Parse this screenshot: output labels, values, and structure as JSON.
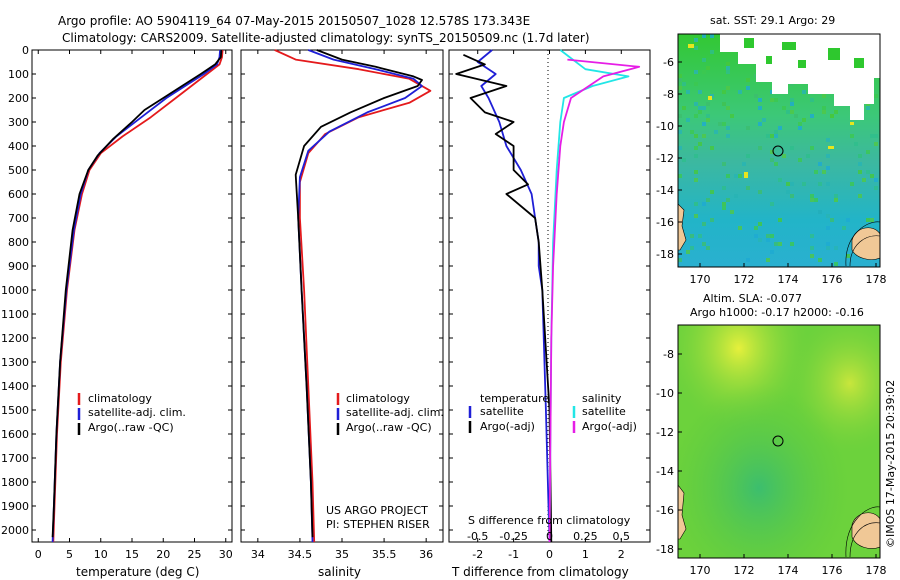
{
  "header": {
    "line1": "Argo profile: AO 5904119_64 07-May-2015 20150507_1028 12.578S 173.343E",
    "line2": "Climatology: CARS2009. Satellite-adjusted climatology: synTS_20150509.nc (1.7d later)"
  },
  "side_stamp": "©IMOS 17-May-2015 20:39:02",
  "colors": {
    "climatology": "#e41a1c",
    "satellite": "#1f1fd6",
    "argo": "#000000",
    "argo_salinity": "#e61ee6",
    "satellite_salinity": "#22e6e6"
  },
  "chart_data": [
    {
      "type": "line",
      "name": "temperature-profile",
      "xlabel": "temperature (deg C)",
      "ylim": [
        2050,
        0
      ],
      "xlim": [
        -1,
        31
      ],
      "xticks": [
        0,
        5,
        10,
        15,
        20,
        25,
        30
      ],
      "yticks": [
        0,
        100,
        200,
        300,
        400,
        500,
        600,
        700,
        800,
        900,
        1000,
        1100,
        1200,
        1300,
        1400,
        1500,
        1600,
        1700,
        1800,
        1900,
        2000
      ],
      "legend": [
        "climatology",
        "satellite-adj. clim.",
        "Argo(..raw -QC)"
      ],
      "series": [
        {
          "name": "climatology",
          "color": "#e41a1c",
          "points": [
            [
              29.5,
              0
            ],
            [
              29.4,
              30
            ],
            [
              29.0,
              60
            ],
            [
              27.0,
              100
            ],
            [
              24.5,
              150
            ],
            [
              22.0,
              200
            ],
            [
              18.0,
              280
            ],
            [
              13.5,
              360
            ],
            [
              10.0,
              430
            ],
            [
              8.2,
              500
            ],
            [
              7.0,
              600
            ],
            [
              5.8,
              750
            ],
            [
              4.6,
              1000
            ],
            [
              3.6,
              1300
            ],
            [
              3.0,
              1600
            ],
            [
              2.6,
              1900
            ],
            [
              2.4,
              2050
            ]
          ]
        },
        {
          "name": "satellite-adj. clim.",
          "color": "#1f1fd6",
          "points": [
            [
              29.1,
              0
            ],
            [
              29.0,
              30
            ],
            [
              28.6,
              60
            ],
            [
              26.5,
              100
            ],
            [
              23.5,
              150
            ],
            [
              20.5,
              200
            ],
            [
              16.5,
              280
            ],
            [
              12.5,
              360
            ],
            [
              9.8,
              430
            ],
            [
              8.0,
              500
            ],
            [
              6.8,
              600
            ],
            [
              5.7,
              750
            ],
            [
              4.5,
              1000
            ],
            [
              3.5,
              1300
            ],
            [
              2.9,
              1600
            ],
            [
              2.5,
              1900
            ],
            [
              2.3,
              2050
            ]
          ]
        },
        {
          "name": "Argo(..raw -QC)",
          "color": "#000000",
          "points": [
            [
              29.3,
              0
            ],
            [
              29.2,
              30
            ],
            [
              28.3,
              60
            ],
            [
              26.0,
              100
            ],
            [
              23.0,
              150
            ],
            [
              20.0,
              200
            ],
            [
              17.0,
              250
            ],
            [
              15.0,
              300
            ],
            [
              12.0,
              370
            ],
            [
              9.5,
              440
            ],
            [
              8.0,
              500
            ],
            [
              6.6,
              600
            ],
            [
              5.5,
              750
            ],
            [
              4.4,
              1000
            ],
            [
              3.5,
              1300
            ],
            [
              2.9,
              1600
            ],
            [
              2.5,
              1900
            ],
            [
              2.3,
              2030
            ]
          ]
        }
      ]
    },
    {
      "type": "line",
      "name": "salinity-profile",
      "xlabel": "salinity",
      "ylim": [
        2050,
        0
      ],
      "xlim": [
        33.8,
        36.2
      ],
      "xticks": [
        34,
        34.5,
        35,
        35.5,
        36
      ],
      "legend": [
        "climatology",
        "satellite-adj. clim.",
        "Argo(..raw -QC)"
      ],
      "annotation": [
        "US ARGO PROJECT",
        "PI: STEPHEN RISER"
      ],
      "series": [
        {
          "name": "climatology",
          "color": "#e41a1c",
          "points": [
            [
              34.2,
              0
            ],
            [
              34.45,
              40
            ],
            [
              35.2,
              80
            ],
            [
              35.8,
              120
            ],
            [
              36.05,
              170
            ],
            [
              35.8,
              220
            ],
            [
              35.2,
              280
            ],
            [
              34.8,
              350
            ],
            [
              34.6,
              430
            ],
            [
              34.5,
              550
            ],
            [
              34.5,
              700
            ],
            [
              34.55,
              1000
            ],
            [
              34.6,
              1400
            ],
            [
              34.65,
              1800
            ],
            [
              34.67,
              2050
            ]
          ]
        },
        {
          "name": "satellite-adj. clim.",
          "color": "#1f1fd6",
          "points": [
            [
              34.6,
              0
            ],
            [
              34.9,
              40
            ],
            [
              35.4,
              80
            ],
            [
              35.85,
              120
            ],
            [
              35.95,
              150
            ],
            [
              35.75,
              200
            ],
            [
              35.3,
              260
            ],
            [
              34.85,
              340
            ],
            [
              34.6,
              420
            ],
            [
              34.5,
              530
            ],
            [
              34.48,
              700
            ],
            [
              34.52,
              1000
            ],
            [
              34.58,
              1400
            ],
            [
              34.63,
              1800
            ],
            [
              34.65,
              2050
            ]
          ]
        },
        {
          "name": "Argo(..raw -QC)",
          "color": "#000000",
          "points": [
            [
              34.7,
              0
            ],
            [
              35.0,
              40
            ],
            [
              35.4,
              70
            ],
            [
              35.85,
              110
            ],
            [
              35.95,
              125
            ],
            [
              35.9,
              150
            ],
            [
              35.5,
              200
            ],
            [
              35.1,
              260
            ],
            [
              34.75,
              320
            ],
            [
              34.55,
              400
            ],
            [
              34.45,
              520
            ],
            [
              34.48,
              700
            ],
            [
              34.52,
              1000
            ],
            [
              34.58,
              1400
            ],
            [
              34.63,
              1800
            ],
            [
              34.65,
              2030
            ]
          ]
        }
      ]
    },
    {
      "type": "line",
      "name": "difference-profile",
      "xlabel": "T difference from climatology",
      "xlabel_top": "S difference from climatology",
      "ylim": [
        2050,
        0
      ],
      "xlim": [
        -2.8,
        2.8
      ],
      "xticks": [
        -2,
        -1,
        0,
        1,
        2
      ],
      "xticks_salinity": [
        "-0.5",
        "-0.25",
        "0",
        "0.25",
        "0.5"
      ],
      "legend": {
        "temperature": "temperature",
        "satellite": "satellite",
        "argo": "Argo(-adj)",
        "salinity": "salinity"
      },
      "series": [
        {
          "name": "temperature satellite",
          "color": "#1f1fd6",
          "points": [
            [
              -1.6,
              0
            ],
            [
              -2.0,
              50
            ],
            [
              -1.5,
              100
            ],
            [
              -1.9,
              150
            ],
            [
              -1.7,
              200
            ],
            [
              -1.4,
              300
            ],
            [
              -1.2,
              400
            ],
            [
              -0.8,
              500
            ],
            [
              -0.5,
              600
            ],
            [
              -0.4,
              700
            ],
            [
              -0.3,
              800
            ],
            [
              -0.3,
              900
            ],
            [
              -0.2,
              1000
            ],
            [
              -0.1,
              1500
            ],
            [
              0,
              2050
            ]
          ]
        },
        {
          "name": "temperature Argo(-adj)",
          "color": "#000000",
          "points": [
            [
              -2.4,
              20
            ],
            [
              -1.8,
              60
            ],
            [
              -2.6,
              100
            ],
            [
              -1.2,
              150
            ],
            [
              -2.2,
              200
            ],
            [
              -1.8,
              260
            ],
            [
              -1.0,
              300
            ],
            [
              -1.5,
              350
            ],
            [
              -1.0,
              400
            ],
            [
              -1.0,
              500
            ],
            [
              -0.6,
              560
            ],
            [
              -1.2,
              600
            ],
            [
              -0.4,
              700
            ],
            [
              -0.3,
              800
            ],
            [
              -0.2,
              1000
            ],
            [
              0,
              1500
            ],
            [
              0.05,
              2050
            ]
          ]
        },
        {
          "name": "salinity satellite",
          "color": "#22e6e6",
          "points": [
            [
              0.3,
              0
            ],
            [
              1.0,
              80
            ],
            [
              2.2,
              110
            ],
            [
              1.2,
              150
            ],
            [
              0.4,
              200
            ],
            [
              0.3,
              300
            ],
            [
              0.2,
              500
            ],
            [
              0.1,
              800
            ],
            [
              0.05,
              1200
            ],
            [
              0,
              2050
            ]
          ]
        },
        {
          "name": "salinity Argo(-adj)",
          "color": "#e61ee6",
          "points": [
            [
              0.5,
              40
            ],
            [
              2.5,
              70
            ],
            [
              1.5,
              110
            ],
            [
              0.6,
              200
            ],
            [
              0.4,
              300
            ],
            [
              0.3,
              400
            ],
            [
              0.2,
              600
            ],
            [
              0.1,
              900
            ],
            [
              0.05,
              1200
            ],
            [
              0,
              2050
            ]
          ]
        }
      ]
    },
    {
      "type": "heatmap",
      "name": "sst-map",
      "title": "sat. SST: 29.1  Argo: 29",
      "xticks": [
        "170",
        "172",
        "174",
        "176",
        "178"
      ],
      "yticks": [
        "-6",
        "-8",
        "-10",
        "-12",
        "-14",
        "-16",
        "-18"
      ],
      "marker": {
        "lon": 173.343,
        "lat": -12.578
      }
    },
    {
      "type": "heatmap",
      "name": "sla-map",
      "title_line1": "Altim. SLA: -0.077",
      "title_line2": "Argo h1000: -0.17  h2000: -0.16",
      "xticks": [
        "170",
        "172",
        "174",
        "176",
        "178"
      ],
      "yticks": [
        "-8",
        "-10",
        "-12",
        "-14",
        "-16",
        "-18"
      ],
      "marker": {
        "lon": 173.343,
        "lat": -12.578
      }
    }
  ]
}
